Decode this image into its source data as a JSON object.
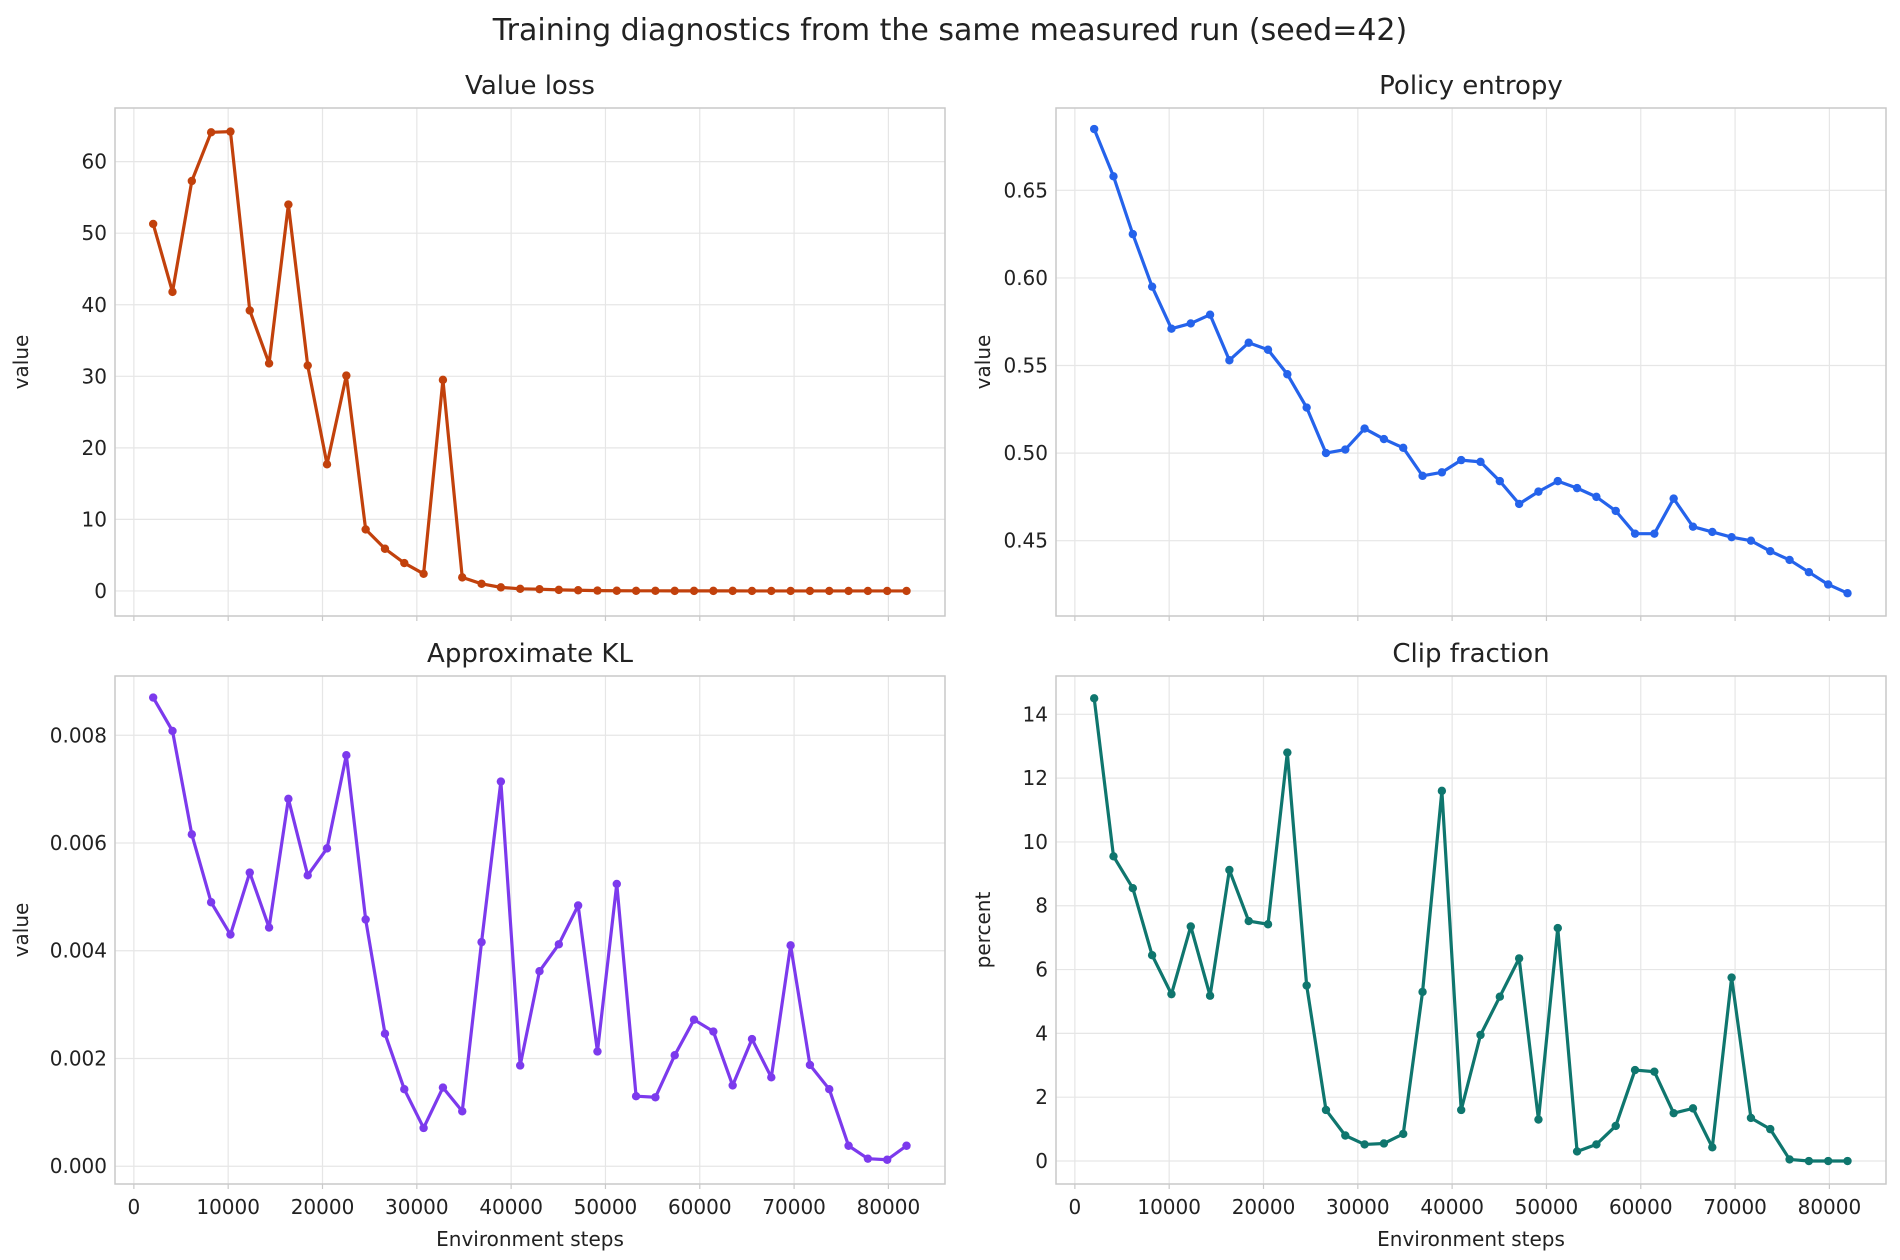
{
  "figure": {
    "title": "Training diagnostics from the same measured run (seed=42)"
  },
  "chart_data": [
    {
      "type": "line",
      "title": "Value loss",
      "xlabel": "",
      "ylabel": "value",
      "color": "#c2410c",
      "xlim": [
        -2000,
        86000
      ],
      "ylim": [
        -3.5,
        67.5
      ],
      "xticks": [
        0,
        10000,
        20000,
        30000,
        40000,
        50000,
        60000,
        70000,
        80000
      ],
      "xtick_labels": [],
      "yticks": [
        0,
        10,
        20,
        30,
        40,
        50,
        60
      ],
      "ytick_labels": [
        "0",
        "10",
        "20",
        "30",
        "40",
        "50",
        "60"
      ],
      "grid": true,
      "x": [
        2048,
        4096,
        6144,
        8192,
        10240,
        12288,
        14336,
        16384,
        18432,
        20480,
        22528,
        24576,
        26624,
        28672,
        30720,
        32768,
        34816,
        36864,
        38912,
        40960,
        43008,
        45056,
        47104,
        49152,
        51200,
        53248,
        55296,
        57344,
        59392,
        61440,
        63488,
        65536,
        67584,
        69632,
        71680,
        73728,
        75776,
        77824,
        79872,
        81920
      ],
      "y": [
        51.3,
        41.8,
        57.3,
        64.1,
        64.2,
        39.2,
        31.8,
        54.0,
        31.5,
        17.7,
        30.1,
        8.6,
        5.9,
        3.9,
        2.4,
        29.5,
        1.9,
        1.0,
        0.5,
        0.3,
        0.25,
        0.15,
        0.1,
        0.05,
        0.03,
        0.02,
        0.02,
        0.01,
        0.01,
        0.01,
        0.01,
        0.0,
        0.0,
        0.0,
        0.0,
        0.0,
        0.0,
        0.0,
        0.0,
        0.0
      ]
    },
    {
      "type": "line",
      "title": "Policy entropy",
      "xlabel": "",
      "ylabel": "value",
      "color": "#2563eb",
      "xlim": [
        -2000,
        86000
      ],
      "ylim": [
        0.407,
        0.697
      ],
      "xticks": [
        0,
        10000,
        20000,
        30000,
        40000,
        50000,
        60000,
        70000,
        80000
      ],
      "xtick_labels": [],
      "yticks": [
        0.45,
        0.5,
        0.55,
        0.6,
        0.65
      ],
      "ytick_labels": [
        "0.45",
        "0.50",
        "0.55",
        "0.60",
        "0.65"
      ],
      "grid": true,
      "x": [
        2048,
        4096,
        6144,
        8192,
        10240,
        12288,
        14336,
        16384,
        18432,
        20480,
        22528,
        24576,
        26624,
        28672,
        30720,
        32768,
        34816,
        36864,
        38912,
        40960,
        43008,
        45056,
        47104,
        49152,
        51200,
        53248,
        55296,
        57344,
        59392,
        61440,
        63488,
        65536,
        67584,
        69632,
        71680,
        73728,
        75776,
        77824,
        79872,
        81920
      ],
      "y": [
        0.685,
        0.658,
        0.625,
        0.595,
        0.571,
        0.574,
        0.579,
        0.553,
        0.563,
        0.559,
        0.545,
        0.526,
        0.5,
        0.502,
        0.514,
        0.508,
        0.503,
        0.487,
        0.489,
        0.496,
        0.495,
        0.484,
        0.471,
        0.478,
        0.484,
        0.48,
        0.475,
        0.467,
        0.454,
        0.454,
        0.474,
        0.458,
        0.455,
        0.452,
        0.45,
        0.444,
        0.439,
        0.432,
        0.425,
        0.42
      ]
    },
    {
      "type": "line",
      "title": "Approximate KL",
      "xlabel": "Environment steps",
      "ylabel": "value",
      "color": "#7c3aed",
      "xlim": [
        -2000,
        86000
      ],
      "ylim": [
        -0.00033,
        0.0091
      ],
      "xticks": [
        0,
        10000,
        20000,
        30000,
        40000,
        50000,
        60000,
        70000,
        80000
      ],
      "xtick_labels": [
        "0",
        "10000",
        "20000",
        "30000",
        "40000",
        "50000",
        "60000",
        "70000",
        "80000"
      ],
      "yticks": [
        0,
        0.002,
        0.004,
        0.006,
        0.008
      ],
      "ytick_labels": [
        "0.000",
        "0.002",
        "0.004",
        "0.006",
        "0.008"
      ],
      "grid": true,
      "x": [
        2048,
        4096,
        6144,
        8192,
        10240,
        12288,
        14336,
        16384,
        18432,
        20480,
        22528,
        24576,
        26624,
        28672,
        30720,
        32768,
        34816,
        36864,
        38912,
        40960,
        43008,
        45056,
        47104,
        49152,
        51200,
        53248,
        55296,
        57344,
        59392,
        61440,
        63488,
        65536,
        67584,
        69632,
        71680,
        73728,
        75776,
        77824,
        79872,
        81920
      ],
      "y": [
        0.0087,
        0.00808,
        0.00616,
        0.0049,
        0.0043,
        0.00545,
        0.00443,
        0.00682,
        0.0054,
        0.0059,
        0.00763,
        0.00458,
        0.00246,
        0.00143,
        0.00071,
        0.00146,
        0.00102,
        0.00416,
        0.00714,
        0.00187,
        0.00362,
        0.00412,
        0.00484,
        0.00213,
        0.00524,
        0.0013,
        0.00128,
        0.00206,
        0.00272,
        0.0025,
        0.0015,
        0.00236,
        0.00165,
        0.0041,
        0.00188,
        0.00143,
        0.00038,
        0.00014,
        0.00012,
        0.00038
      ]
    },
    {
      "type": "line",
      "title": "Clip fraction",
      "xlabel": "Environment steps",
      "ylabel": "percent",
      "color": "#0f766e",
      "xlim": [
        -2000,
        86000
      ],
      "ylim": [
        -0.72,
        15.2
      ],
      "xticks": [
        0,
        10000,
        20000,
        30000,
        40000,
        50000,
        60000,
        70000,
        80000
      ],
      "xtick_labels": [
        "0",
        "10000",
        "20000",
        "30000",
        "40000",
        "50000",
        "60000",
        "70000",
        "80000"
      ],
      "yticks": [
        0,
        2,
        4,
        6,
        8,
        10,
        12,
        14
      ],
      "ytick_labels": [
        "0",
        "2",
        "4",
        "6",
        "8",
        "10",
        "12",
        "14"
      ],
      "grid": true,
      "x": [
        2048,
        4096,
        6144,
        8192,
        10240,
        12288,
        14336,
        16384,
        18432,
        20480,
        22528,
        24576,
        26624,
        28672,
        30720,
        32768,
        34816,
        36864,
        38912,
        40960,
        43008,
        45056,
        47104,
        49152,
        51200,
        53248,
        55296,
        57344,
        59392,
        61440,
        63488,
        65536,
        67584,
        69632,
        71680,
        73728,
        75776,
        77824,
        79872,
        81920
      ],
      "y": [
        14.5,
        9.55,
        8.55,
        6.45,
        5.23,
        7.35,
        5.18,
        9.12,
        7.52,
        7.42,
        12.8,
        5.5,
        1.6,
        0.8,
        0.52,
        0.55,
        0.85,
        5.3,
        11.6,
        1.6,
        3.95,
        5.15,
        6.35,
        1.3,
        7.3,
        0.3,
        0.52,
        1.1,
        2.85,
        2.8,
        1.5,
        1.65,
        0.43,
        5.75,
        1.35,
        1.0,
        0.05,
        0.0,
        0.0,
        0.0
      ]
    }
  ]
}
